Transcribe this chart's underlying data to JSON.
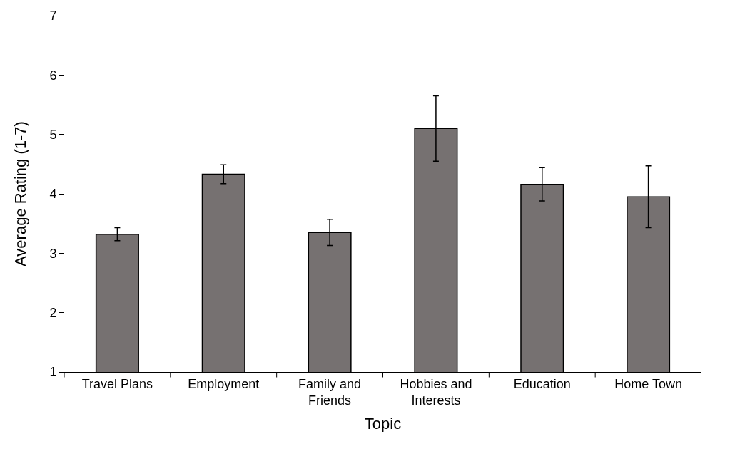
{
  "chart_data": {
    "type": "bar",
    "xlabel": "Topic",
    "ylabel": "Average Rating (1-7)",
    "categories": [
      "Travel Plans",
      "Employment",
      "Family and Friends",
      "Hobbies and Interests",
      "Education",
      "Home Town"
    ],
    "values": [
      3.32,
      4.33,
      3.35,
      5.1,
      4.16,
      3.95
    ],
    "errors": [
      0.11,
      0.16,
      0.22,
      0.55,
      0.28,
      0.52
    ],
    "color": "#767171",
    "ylim": [
      1,
      7
    ],
    "yticks": [
      1,
      2,
      3,
      4,
      5,
      6,
      7
    ],
    "grid": false,
    "legend": false
  }
}
